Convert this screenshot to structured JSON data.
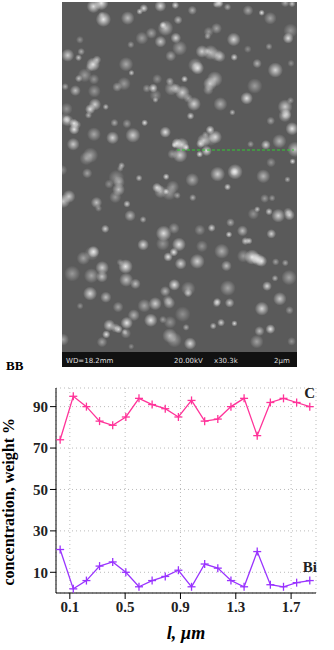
{
  "panel_label": "BB",
  "micrograph": {
    "footer": [
      "WD=18.2mm",
      "20.00kV",
      "x30.3k",
      "2µm"
    ]
  },
  "chart_data": {
    "type": "line",
    "x_label": "l, µm",
    "y_label": "concentration, weight %",
    "x": [
      0.03,
      0.125,
      0.22,
      0.315,
      0.41,
      0.505,
      0.6,
      0.695,
      0.79,
      0.885,
      0.98,
      1.075,
      1.17,
      1.265,
      1.36,
      1.455,
      1.55,
      1.645,
      1.74,
      1.835
    ],
    "series": [
      {
        "name": "C",
        "color": "#ff3399",
        "marker": "plus",
        "values": [
          74,
          95,
          90,
          83,
          81,
          85,
          94,
          91,
          89,
          85,
          93,
          83,
          84,
          90,
          94,
          76,
          92,
          94,
          92,
          90
        ]
      },
      {
        "name": "Bi",
        "color": "#9933ff",
        "marker": "plus",
        "values": [
          21,
          2,
          6,
          13,
          15,
          10,
          3,
          6,
          8,
          11,
          3,
          14,
          12,
          6,
          3,
          20,
          4,
          3,
          5,
          6
        ]
      }
    ],
    "xlim": [
      0,
      1.88
    ],
    "xticks": [
      0.1,
      0.5,
      0.9,
      1.3,
      1.7
    ],
    "ylim": [
      0,
      99
    ],
    "yticks": [
      10,
      30,
      50,
      70,
      90
    ],
    "grid": true
  }
}
